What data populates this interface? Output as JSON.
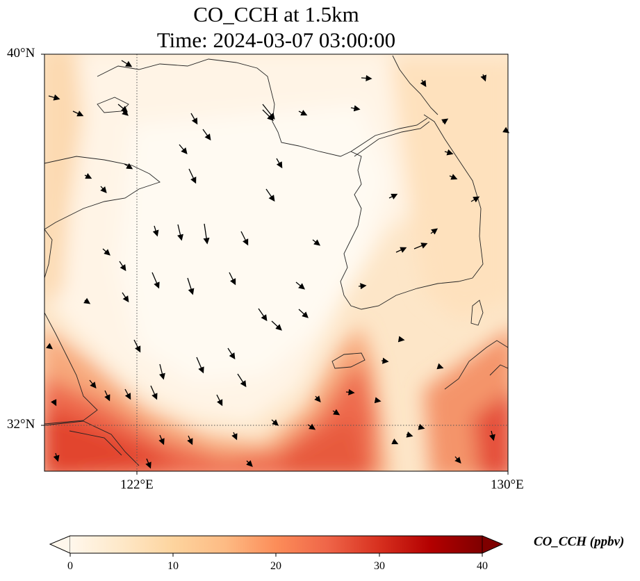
{
  "title": {
    "line1": "CO_CCH at 1.5km",
    "line2": "Time: 2024-03-07 03:00:00"
  },
  "map": {
    "lat_range": [
      31.2,
      40
    ],
    "lon_range": [
      120.4,
      130
    ],
    "lat_ticks": [
      "40°N",
      "32°N"
    ],
    "lon_ticks": [
      "122°E",
      "130°E"
    ],
    "gridlines": {
      "lat": 32,
      "lon": 122,
      "style": "dotted"
    },
    "wind_vectors": "shown",
    "coastlines": "shown"
  },
  "colorbar": {
    "label": "CO_CCH (ppbv)",
    "ticks": [
      "0",
      "10",
      "20",
      "30",
      "40"
    ],
    "min": 0,
    "max": 40,
    "extend": "both",
    "colormap": "OrRd",
    "colors": [
      "#fff7ec",
      "#fee8c8",
      "#fdd49e",
      "#fdbb84",
      "#fc8d59",
      "#ef6548",
      "#d7301f",
      "#b30000",
      "#7f0000"
    ]
  }
}
